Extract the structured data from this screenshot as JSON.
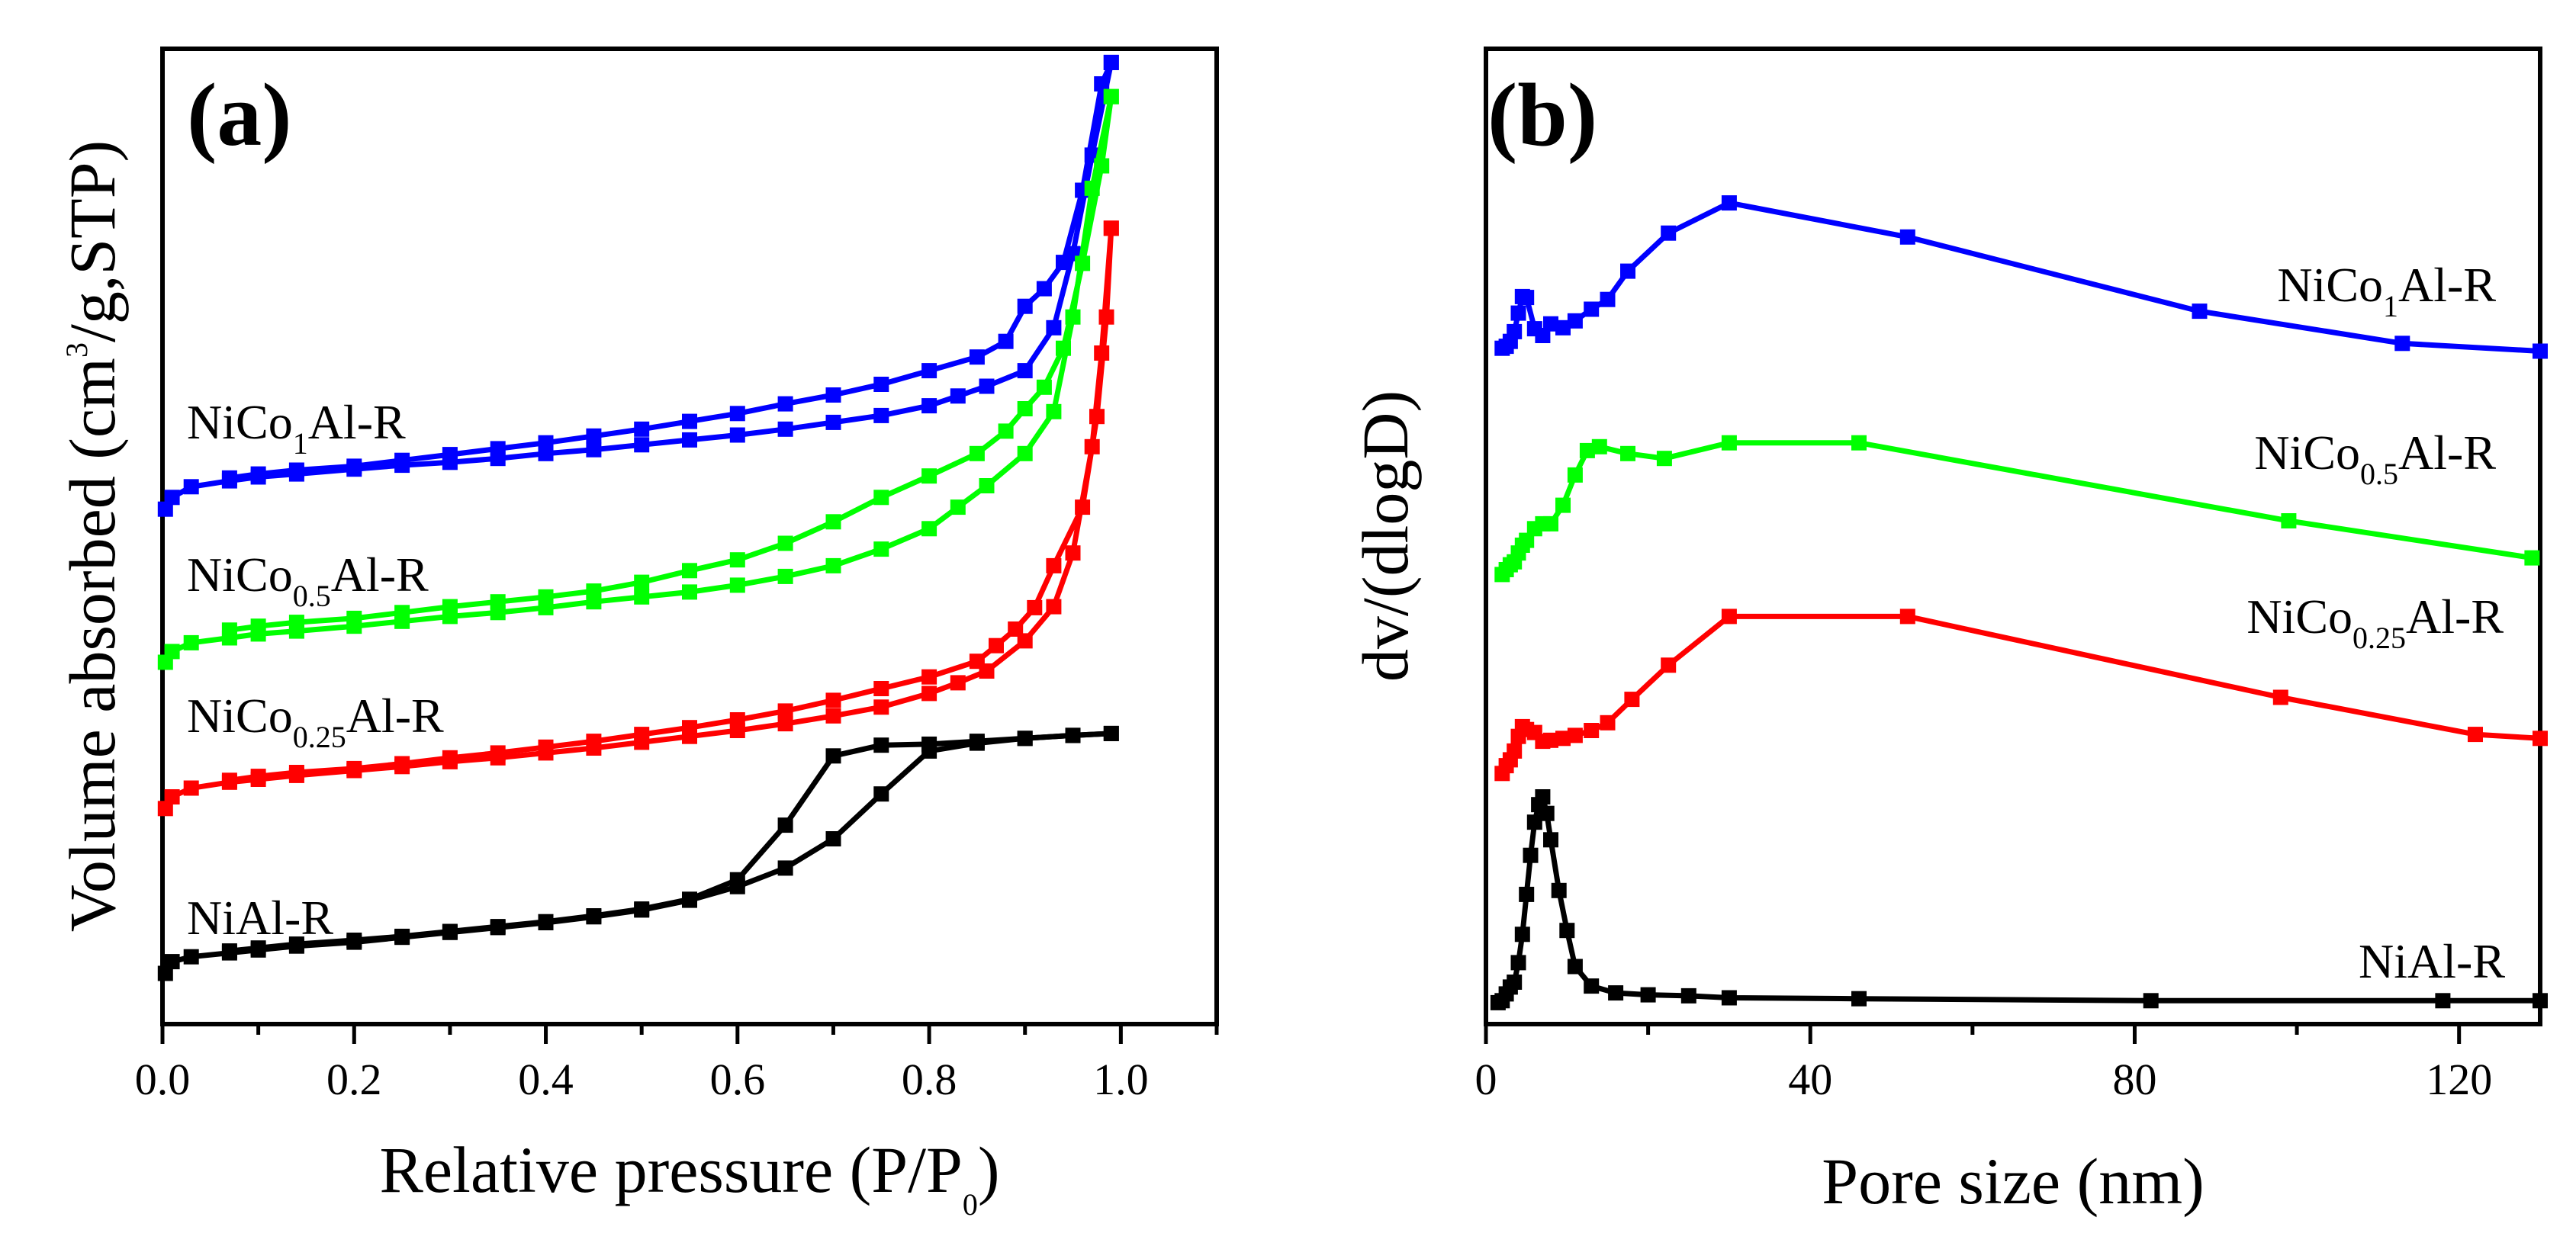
{
  "figure": {
    "panels": [
      "(a)",
      "(b)"
    ]
  },
  "chart_data": [
    {
      "type": "line",
      "panel_label": "(a)",
      "title": "",
      "xlabel": "Relative pressure (P/P",
      "xlabel_sub": "0",
      "xlabel_suffix": ")",
      "ylabel": "Volume absorbed (cm",
      "ylabel_sup": "3",
      "ylabel_suffix": "/g,STP)",
      "xlim": [
        0,
        1.1
      ],
      "ylim": [
        0,
        100
      ],
      "xticks": [
        0.0,
        0.2,
        0.4,
        0.6,
        0.8,
        1.0
      ],
      "xtick_labels": [
        "0.0",
        "0.2",
        "0.4",
        "0.6",
        "0.8",
        "1.0"
      ],
      "y_ticks_shown": false,
      "series": [
        {
          "name": "NiCo1Al-R",
          "label_main": "NiCo",
          "label_sub": "1",
          "label_suffix": "Al-R",
          "color": "#0000ff",
          "adsorption": {
            "x": [
              0.003,
              0.01,
              0.03,
              0.07,
              0.1,
              0.14,
              0.2,
              0.25,
              0.3,
              0.35,
              0.4,
              0.45,
              0.5,
              0.55,
              0.6,
              0.65,
              0.7,
              0.75,
              0.8,
              0.83,
              0.86,
              0.9,
              0.93,
              0.95,
              0.97,
              0.99
            ],
            "y": [
              52.8,
              54.0,
              55.1,
              55.7,
              56.1,
              56.4,
              56.9,
              57.3,
              57.6,
              58.0,
              58.5,
              58.9,
              59.4,
              59.9,
              60.4,
              61.0,
              61.7,
              62.4,
              63.4,
              64.4,
              65.4,
              67.0,
              71.4,
              79.0,
              89.1,
              98.6
            ]
          },
          "desorption": {
            "x": [
              0.99,
              0.98,
              0.96,
              0.94,
              0.92,
              0.9,
              0.88,
              0.85,
              0.8,
              0.75,
              0.7,
              0.65,
              0.6,
              0.55,
              0.5,
              0.45,
              0.4,
              0.35,
              0.3,
              0.25,
              0.2,
              0.14,
              0.1,
              0.07
            ],
            "y": [
              98.6,
              96.4,
              85.5,
              78.1,
              75.4,
              73.6,
              70.0,
              68.4,
              67.0,
              65.6,
              64.5,
              63.6,
              62.6,
              61.8,
              61.0,
              60.3,
              59.6,
              59.0,
              58.4,
              57.8,
              57.2,
              56.8,
              56.4,
              56.0
            ]
          }
        },
        {
          "name": "NiCo0.5Al-R",
          "label_main": "NiCo",
          "label_sub": "0.5",
          "label_suffix": "Al-R",
          "color": "#00ff00",
          "adsorption": {
            "x": [
              0.003,
              0.01,
              0.03,
              0.07,
              0.1,
              0.14,
              0.2,
              0.25,
              0.3,
              0.35,
              0.4,
              0.45,
              0.5,
              0.55,
              0.6,
              0.65,
              0.7,
              0.75,
              0.8,
              0.83,
              0.86,
              0.9,
              0.93,
              0.95,
              0.97,
              0.99
            ],
            "y": [
              37.1,
              38.2,
              39.1,
              39.6,
              40.0,
              40.3,
              40.8,
              41.3,
              41.8,
              42.2,
              42.7,
              43.3,
              43.8,
              44.3,
              45.0,
              45.9,
              47.0,
              48.7,
              50.8,
              53.0,
              55.2,
              58.5,
              62.8,
              72.5,
              85.7,
              95.1
            ]
          },
          "desorption": {
            "x": [
              0.99,
              0.98,
              0.96,
              0.94,
              0.92,
              0.9,
              0.88,
              0.85,
              0.8,
              0.75,
              0.7,
              0.65,
              0.6,
              0.55,
              0.5,
              0.45,
              0.4,
              0.35,
              0.3,
              0.25,
              0.2,
              0.14,
              0.1,
              0.07
            ],
            "y": [
              95.1,
              88.0,
              78.0,
              69.3,
              65.3,
              63.1,
              60.8,
              58.5,
              56.2,
              54.0,
              51.5,
              49.3,
              47.6,
              46.5,
              45.3,
              44.4,
              43.8,
              43.3,
              42.8,
              42.2,
              41.6,
              41.2,
              40.8,
              40.4
            ]
          }
        },
        {
          "name": "NiCo0.25Al-R",
          "label_main": "NiCo",
          "label_sub": "0.25",
          "label_suffix": "Al-R",
          "color": "#ff0000",
          "adsorption": {
            "x": [
              0.003,
              0.01,
              0.03,
              0.07,
              0.1,
              0.14,
              0.2,
              0.25,
              0.3,
              0.35,
              0.4,
              0.45,
              0.5,
              0.55,
              0.6,
              0.65,
              0.7,
              0.75,
              0.8,
              0.83,
              0.86,
              0.9,
              0.93,
              0.95,
              0.97,
              0.98,
              0.99
            ],
            "y": [
              22.1,
              23.3,
              24.2,
              24.8,
              25.1,
              25.5,
              26.0,
              26.4,
              26.9,
              27.3,
              27.8,
              28.3,
              28.9,
              29.5,
              30.1,
              30.8,
              31.6,
              32.5,
              33.9,
              35.0,
              36.2,
              39.3,
              42.8,
              48.3,
              59.2,
              68.8,
              81.6
            ]
          },
          "desorption": {
            "x": [
              0.99,
              0.985,
              0.975,
              0.96,
              0.93,
              0.91,
              0.89,
              0.87,
              0.85,
              0.8,
              0.75,
              0.7,
              0.65,
              0.6,
              0.55,
              0.5,
              0.45,
              0.4,
              0.35,
              0.3,
              0.25,
              0.2,
              0.14,
              0.1,
              0.07
            ],
            "y": [
              81.6,
              72.5,
              62.3,
              53.0,
              47.0,
              42.7,
              40.5,
              38.8,
              37.2,
              35.6,
              34.4,
              33.2,
              32.1,
              31.2,
              30.4,
              29.7,
              29.0,
              28.4,
              27.8,
              27.3,
              26.7,
              26.2,
              25.8,
              25.4,
              25.0
            ]
          }
        },
        {
          "name": "NiAl-R",
          "label_main": "NiAl-R",
          "label_sub": "",
          "label_suffix": "",
          "color": "#000000",
          "adsorption": {
            "x": [
              0.003,
              0.01,
              0.03,
              0.07,
              0.1,
              0.14,
              0.2,
              0.25,
              0.3,
              0.35,
              0.4,
              0.45,
              0.5,
              0.55,
              0.6,
              0.65,
              0.7,
              0.75,
              0.8,
              0.85,
              0.9,
              0.95,
              0.99
            ],
            "y": [
              5.2,
              6.4,
              6.9,
              7.3,
              7.6,
              8.0,
              8.4,
              8.9,
              9.4,
              9.9,
              10.4,
              11.0,
              11.7,
              12.7,
              14.1,
              16.0,
              19.0,
              23.6,
              28.0,
              28.8,
              29.3,
              29.6,
              29.8
            ]
          },
          "desorption": {
            "x": [
              0.99,
              0.95,
              0.9,
              0.85,
              0.8,
              0.75,
              0.7,
              0.65,
              0.6,
              0.55,
              0.5,
              0.45,
              0.4,
              0.35,
              0.3,
              0.25,
              0.2,
              0.14,
              0.1,
              0.07
            ],
            "y": [
              29.8,
              29.6,
              29.3,
              29.0,
              28.7,
              28.6,
              27.5,
              20.4,
              14.8,
              12.8,
              11.8,
              11.1,
              10.5,
              10.0,
              9.5,
              9.0,
              8.6,
              8.2,
              7.8,
              7.5
            ]
          }
        }
      ]
    },
    {
      "type": "line",
      "panel_label": "(b)",
      "title": "",
      "xlabel": "Pore size (nm)",
      "ylabel": "dv/(dlogD)",
      "xlim": [
        0,
        130
      ],
      "ylim": [
        0,
        100
      ],
      "xticks": [
        0,
        40,
        80,
        120
      ],
      "xtick_labels": [
        "0",
        "40",
        "80",
        "120"
      ],
      "y_ticks_shown": false,
      "series": [
        {
          "name": "NiCo1Al-R",
          "label_main": "NiCo",
          "label_sub": "1",
          "label_suffix": "Al-R",
          "color": "#0000ff",
          "x": [
            2.0,
            2.5,
            3.0,
            3.5,
            4.0,
            4.5,
            5.0,
            6.0,
            7.0,
            8.0,
            9.5,
            11.0,
            13.0,
            15.0,
            17.5,
            22.5,
            30.0,
            52.0,
            88.0,
            113.0,
            130.0
          ],
          "y": [
            69.3,
            69.5,
            70.0,
            71.0,
            72.9,
            74.6,
            74.5,
            71.3,
            70.6,
            71.8,
            71.4,
            72.1,
            73.3,
            74.3,
            77.2,
            81.1,
            84.2,
            80.7,
            73.1,
            69.8,
            69.0
          ]
        },
        {
          "name": "NiCo0.5Al-R",
          "label_main": "NiCo",
          "label_sub": "0.5",
          "label_suffix": "Al-R",
          "color": "#00ff00",
          "x": [
            2.0,
            2.5,
            3.0,
            3.5,
            4.0,
            4.5,
            5.0,
            6.0,
            7.0,
            8.0,
            9.5,
            11.0,
            12.5,
            14.0,
            17.5,
            22.0,
            30.0,
            46.0,
            99.0,
            129.0
          ],
          "y": [
            46.1,
            46.6,
            47.1,
            47.4,
            48.3,
            49.1,
            49.6,
            50.8,
            51.3,
            51.3,
            53.2,
            56.3,
            58.8,
            59.2,
            58.5,
            58.0,
            59.6,
            59.6,
            51.6,
            47.8
          ]
        },
        {
          "name": "NiCo0.25Al-R",
          "label_main": "NiCo",
          "label_sub": "0.25",
          "label_suffix": "Al-R",
          "color": "#ff0000",
          "x": [
            2.0,
            2.5,
            3.0,
            3.5,
            4.0,
            4.5,
            5.0,
            6.0,
            7.0,
            8.0,
            9.5,
            11.0,
            13.0,
            15.0,
            18.0,
            22.5,
            30.0,
            52.0,
            98.0,
            122.0,
            130.0
          ],
          "y": [
            25.7,
            26.5,
            27.1,
            28.0,
            29.5,
            30.5,
            30.2,
            29.9,
            29.0,
            29.1,
            29.3,
            29.6,
            30.1,
            30.9,
            33.3,
            36.8,
            41.8,
            41.8,
            33.5,
            29.7,
            29.3
          ]
        },
        {
          "name": "NiAl-R",
          "label_main": "NiAl-R",
          "label_sub": "",
          "label_suffix": "",
          "color": "#000000",
          "x": [
            1.5,
            2.0,
            2.5,
            3.0,
            3.5,
            4.0,
            4.5,
            5.0,
            5.5,
            6.0,
            6.5,
            7.0,
            7.5,
            8.0,
            9.0,
            10.0,
            11.0,
            13.0,
            16.0,
            20.0,
            25.0,
            30.0,
            46.0,
            82.0,
            118.0,
            130.0
          ],
          "y": [
            2.2,
            2.4,
            3.1,
            3.8,
            4.3,
            6.3,
            9.2,
            13.3,
            17.3,
            20.7,
            22.5,
            23.3,
            21.6,
            18.9,
            13.7,
            9.6,
            5.9,
            3.9,
            3.2,
            3.0,
            2.9,
            2.7,
            2.6,
            2.4,
            2.4,
            2.4
          ]
        }
      ]
    }
  ]
}
